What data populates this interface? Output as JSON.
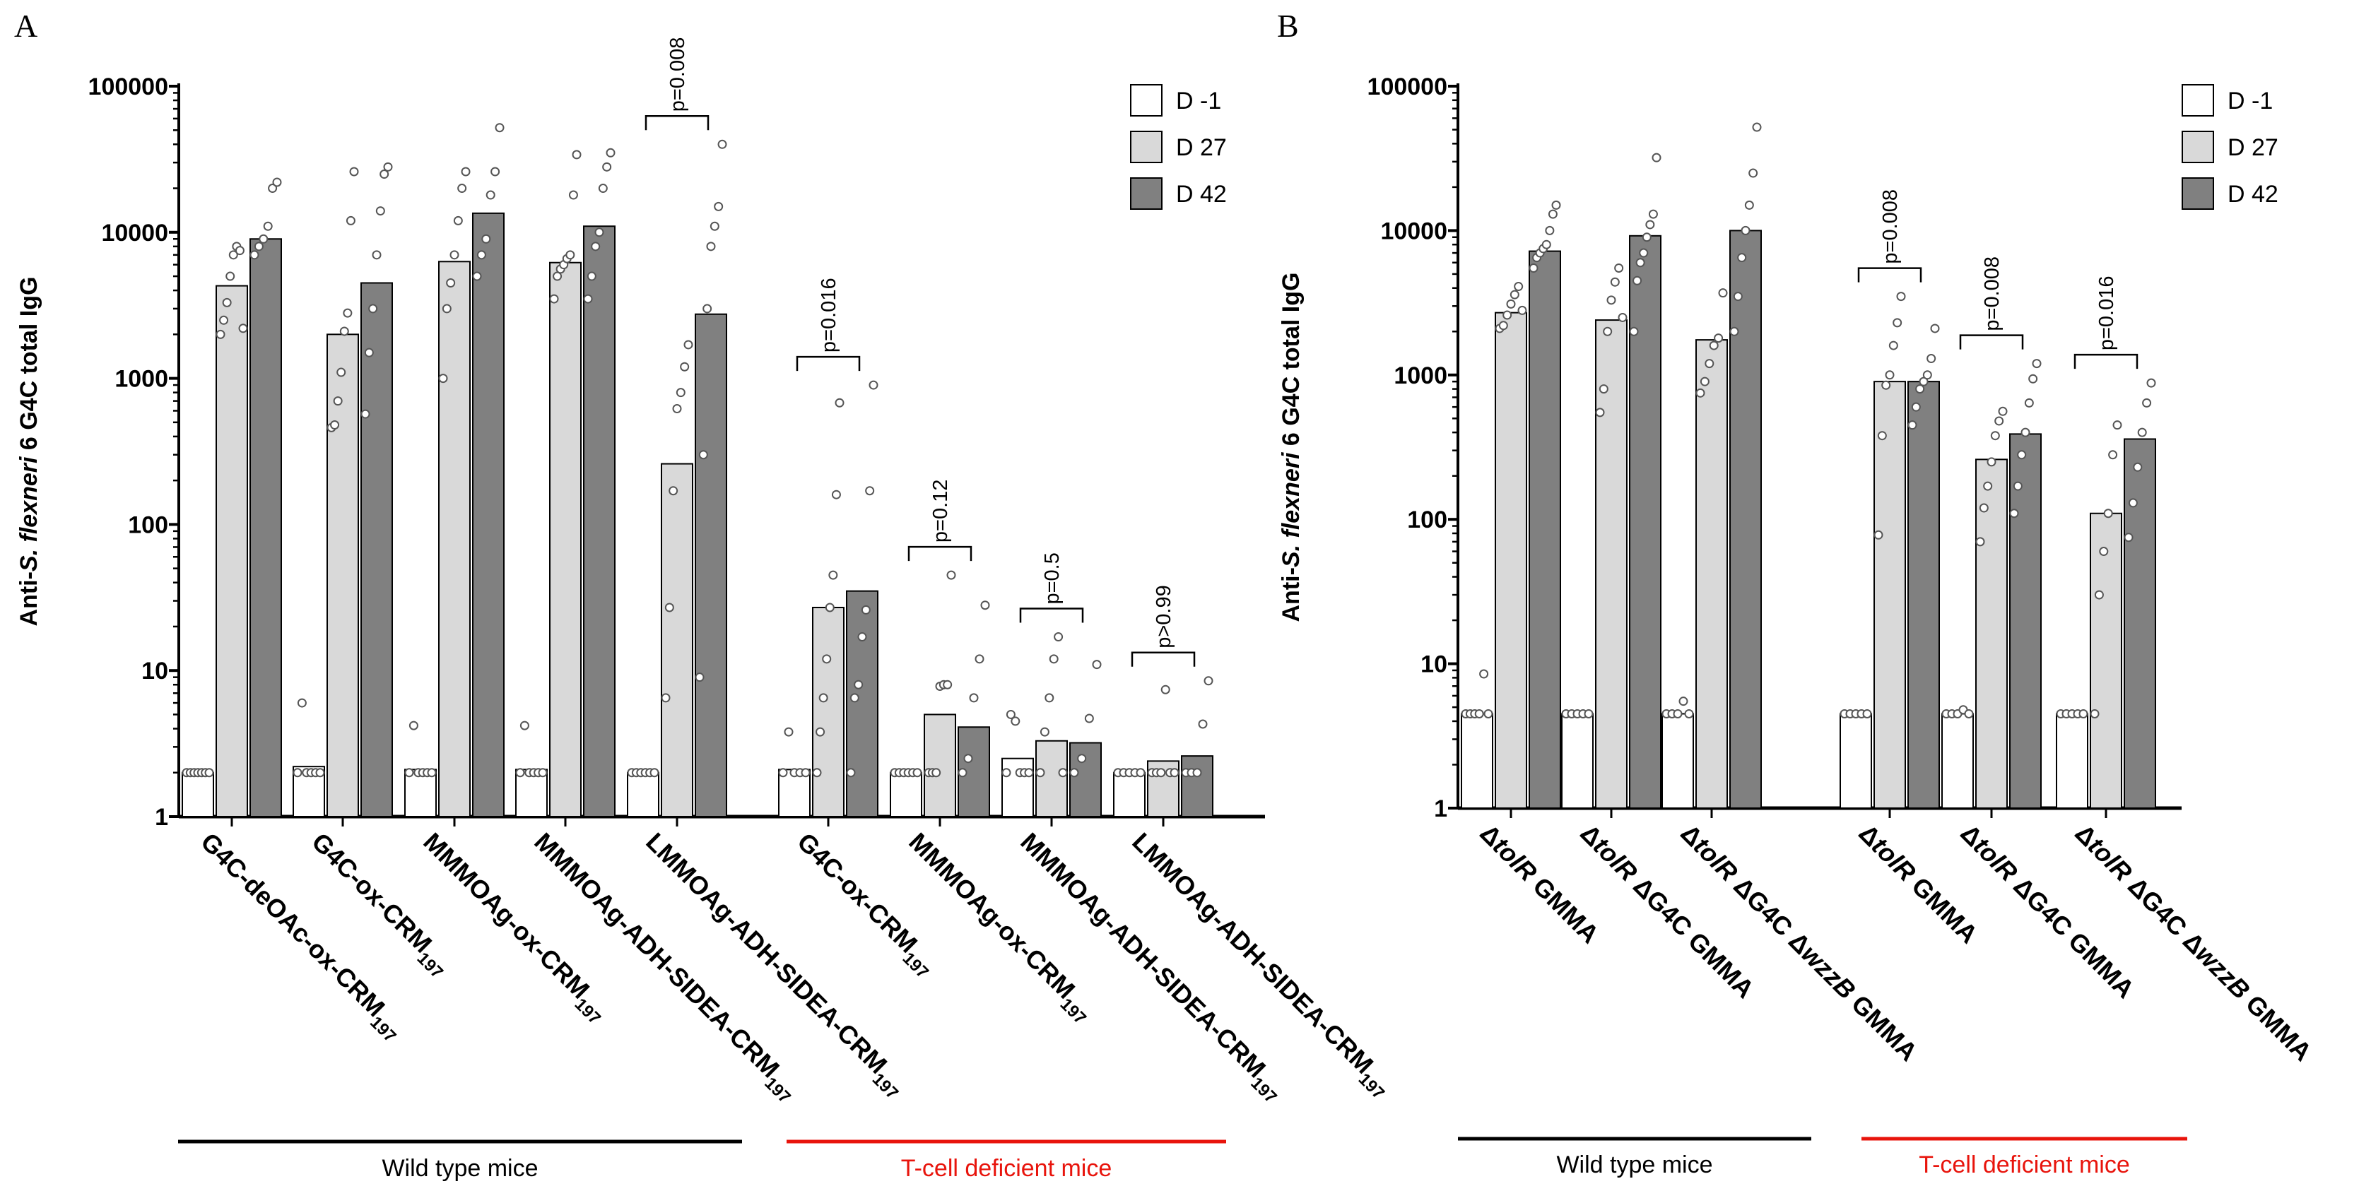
{
  "chart_data": [
    {
      "type": "bar",
      "panel_label": "A",
      "ylabel": "Anti-S. flexneri 6 G4C total IgG",
      "ylabel_parts": [
        "Anti-",
        "S. flexneri",
        " 6 G4C total IgG"
      ],
      "yscale": "log",
      "ylim": [
        1,
        100000
      ],
      "yticks": [
        "1",
        "10",
        "100",
        "1000",
        "10000",
        "100000"
      ],
      "legend": {
        "position": "top-right",
        "entries": [
          "D -1",
          "D 27",
          "D 42"
        ]
      },
      "colors": {
        "D -1": "#ffffff",
        "D 27": "#d9d9d9",
        "D 42": "#808080"
      },
      "categories": [
        "G4C-deOAc-ox-CRM197",
        "G4C-ox-CRM197",
        "MMMOAg-ox-CRM197",
        "MMMOAg-ADH-SIDEA-CRM197",
        "LMMOAg-ADH-SIDEA-CRM197",
        "G4C-ox-CRM197",
        "MMMOAg-ox-CRM197",
        "MMMOAg-ADH-SIDEA-CRM197",
        "LMMOAg-ADH-SIDEA-CRM197"
      ],
      "category_labels": [
        [
          "G4C-deOAc-ox-CRM",
          "197"
        ],
        [
          "G4C-ox-CRM",
          "197"
        ],
        [
          "MMMOAg-ox-CRM",
          "197"
        ],
        [
          "MMMOAg-ADH-SIDEA-CRM",
          "197"
        ],
        [
          "LMMOAg-ADH-SIDEA-CRM",
          "197"
        ],
        [
          "G4C-ox-CRM",
          "197"
        ],
        [
          "MMMOAg-ox-CRM",
          "197"
        ],
        [
          "MMMOAg-ADH-SIDEA-CRM",
          "197"
        ],
        [
          "LMMOAg-ADH-SIDEA-CRM",
          "197"
        ]
      ],
      "series": [
        {
          "name": "D -1",
          "values": [
            2,
            2.2,
            2.1,
            2.1,
            2,
            2.1,
            2,
            2.5,
            2
          ]
        },
        {
          "name": "D 27",
          "values": [
            4300,
            2000,
            6300,
            6200,
            260,
            27,
            5,
            3.3,
            2.4
          ]
        },
        {
          "name": "D 42",
          "values": [
            9000,
            4500,
            13500,
            11000,
            2750,
            35,
            4.1,
            3.2,
            2.6
          ]
        }
      ],
      "points": [
        [
          [
            2,
            2,
            2,
            2,
            2,
            2,
            2
          ],
          [
            2,
            6,
            2,
            2,
            2,
            2
          ],
          [
            2,
            4.2,
            2,
            2,
            2,
            2
          ],
          [
            2,
            4.2,
            2,
            2,
            2,
            2
          ],
          [
            2,
            2,
            2,
            2,
            2,
            2
          ],
          [
            2,
            3.8,
            2,
            2,
            2
          ],
          [
            2,
            2,
            2,
            2,
            2,
            2
          ],
          [
            2,
            5,
            4.5,
            2,
            2,
            2
          ],
          [
            2,
            2,
            2,
            2,
            2
          ]
        ],
        [
          [
            2000,
            2500,
            3300,
            5000,
            7000,
            8000,
            7500,
            2200
          ],
          [
            460,
            480,
            700,
            1100,
            2100,
            2800,
            12000,
            26000
          ],
          [
            1000,
            3000,
            4500,
            7000,
            12000,
            20000,
            26000
          ],
          [
            3500,
            5000,
            5600,
            6000,
            6600,
            7000,
            18000,
            34000
          ],
          [
            6.5,
            27,
            170,
            620,
            800,
            1200,
            1700
          ],
          [
            2,
            3.8,
            6.5,
            12,
            27,
            45,
            160,
            680
          ],
          [
            2,
            2,
            2,
            7.8,
            8,
            8,
            45
          ],
          [
            2,
            3.8,
            6.5,
            12,
            17,
            2
          ],
          [
            2,
            2,
            2,
            7.4,
            2,
            2
          ]
        ],
        [
          [
            7000,
            8000,
            9000,
            11000,
            20000,
            22000
          ],
          [
            570,
            1500,
            3000,
            7000,
            14000,
            25000,
            28000
          ],
          [
            5000,
            7000,
            9000,
            18000,
            26000,
            52000
          ],
          [
            3500,
            5000,
            8000,
            10000,
            20000,
            28000,
            35000
          ],
          [
            9,
            300,
            3000,
            8000,
            11000,
            15000,
            40000
          ],
          [
            2,
            6.5,
            8,
            17,
            26,
            170,
            900
          ],
          [
            2,
            2.5,
            6.5,
            12,
            28
          ],
          [
            2,
            2.5,
            4.7,
            11
          ],
          [
            2,
            2,
            2,
            4.3,
            8.5
          ]
        ]
      ],
      "significance": [
        {
          "category_index": 4,
          "label": "p=0.008"
        },
        {
          "category_index": 5,
          "label": "p=0.016"
        },
        {
          "category_index": 6,
          "label": "p=0.12"
        },
        {
          "category_index": 7,
          "label": "p=0.5"
        },
        {
          "category_index": 8,
          "label": "p>0.99"
        }
      ],
      "groups": [
        {
          "label": "Wild type mice",
          "from": 0,
          "to": 4,
          "color": "#000000"
        },
        {
          "label": "T-cell deficient mice",
          "from": 5,
          "to": 8,
          "color": "#e8140c"
        }
      ]
    },
    {
      "type": "bar",
      "panel_label": "B",
      "ylabel": "Anti-S. flexneri 6 G4C total IgG",
      "ylabel_parts": [
        "Anti-",
        "S. flexneri",
        " 6 G4C total IgG"
      ],
      "yscale": "log",
      "ylim": [
        1,
        100000
      ],
      "yticks": [
        "1",
        "10",
        "100",
        "1000",
        "10000",
        "100000"
      ],
      "legend": {
        "position": "top-right",
        "entries": [
          "D -1",
          "D 27",
          "D 42"
        ]
      },
      "colors": {
        "D -1": "#ffffff",
        "D 27": "#d9d9d9",
        "D 42": "#808080"
      },
      "categories": [
        "ΔtolR GMMA",
        "ΔtolR ΔG4C GMMA",
        "ΔtolR ΔG4C ΔwzzB GMMA",
        "ΔtolR GMMA",
        "ΔtolR ΔG4C GMMA",
        "ΔtolR ΔG4C ΔwzzB GMMA"
      ],
      "category_labels": [
        [
          [
            "Δ",
            false
          ],
          [
            "tolR",
            true
          ],
          [
            " GMMA",
            false
          ]
        ],
        [
          [
            "Δ",
            false
          ],
          [
            "tolR",
            true
          ],
          [
            " ΔG4C GMMA",
            false
          ]
        ],
        [
          [
            "Δ",
            false
          ],
          [
            "tolR",
            true
          ],
          [
            " ΔG4C Δ",
            false
          ],
          [
            "wzzB",
            true
          ],
          [
            " GMMA",
            false
          ]
        ],
        [
          [
            "Δ",
            false
          ],
          [
            "tolR",
            true
          ],
          [
            " GMMA",
            false
          ]
        ],
        [
          [
            "Δ",
            false
          ],
          [
            "tolR",
            true
          ],
          [
            " ΔG4C GMMA",
            false
          ]
        ],
        [
          [
            "Δ",
            false
          ],
          [
            "tolR",
            true
          ],
          [
            " ΔG4C Δ",
            false
          ],
          [
            "wzzB",
            true
          ],
          [
            " GMMA",
            false
          ]
        ]
      ],
      "series": [
        {
          "name": "D -1",
          "values": [
            4.5,
            4.5,
            4.5,
            4.5,
            4.5,
            4.5
          ]
        },
        {
          "name": "D 27",
          "values": [
            2700,
            2400,
            1750,
            900,
            260,
            110
          ]
        },
        {
          "name": "D 42",
          "values": [
            7200,
            9200,
            10000,
            900,
            390,
            360
          ]
        }
      ],
      "points": [
        [
          [
            4.5,
            4.5,
            4.5,
            4.5,
            8.5,
            4.5
          ],
          [
            4.5,
            4.5,
            4.5,
            4.5,
            4.5
          ],
          [
            4.5,
            4.5,
            4.5,
            5.5,
            4.5
          ],
          [
            4.5,
            4.5,
            4.5,
            4.5,
            4.5
          ],
          [
            4.5,
            4.5,
            4.5,
            4.8,
            4.5
          ],
          [
            4.5,
            4.5,
            4.5,
            4.5,
            4.5
          ]
        ],
        [
          [
            2100,
            2200,
            2600,
            3100,
            3600,
            4100,
            2800
          ],
          [
            550,
            800,
            2000,
            3300,
            4400,
            5500,
            2500
          ],
          [
            750,
            900,
            1200,
            1600,
            1800,
            3700
          ],
          [
            78,
            380,
            850,
            1000,
            1600,
            2300,
            3500
          ],
          [
            70,
            120,
            170,
            250,
            380,
            480,
            560
          ],
          [
            4.5,
            30,
            60,
            110,
            280,
            450
          ]
        ],
        [
          [
            5500,
            6500,
            7000,
            7500,
            8000,
            10000,
            13000,
            15000
          ],
          [
            2000,
            4500,
            6000,
            7000,
            9000,
            11000,
            13000,
            32000
          ],
          [
            2000,
            3500,
            6500,
            10000,
            15000,
            25000,
            52000
          ],
          [
            450,
            600,
            800,
            900,
            1000,
            1300,
            2100
          ],
          [
            110,
            170,
            280,
            400,
            640,
            940,
            1200
          ],
          [
            75,
            130,
            230,
            400,
            640,
            880
          ]
        ]
      ],
      "significance": [
        {
          "category_index": 3,
          "label": "p=0.008"
        },
        {
          "category_index": 4,
          "label": "p=0.008"
        },
        {
          "category_index": 5,
          "label": "p=0.016"
        }
      ],
      "groups": [
        {
          "label": "Wild type mice",
          "from": 0,
          "to": 2,
          "color": "#000000"
        },
        {
          "label": "T-cell deficient mice",
          "from": 3,
          "to": 5,
          "color": "#e8140c"
        }
      ]
    }
  ]
}
